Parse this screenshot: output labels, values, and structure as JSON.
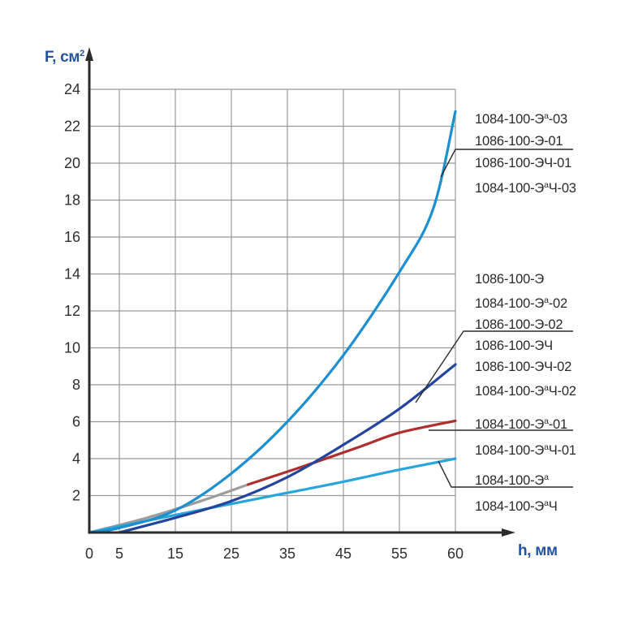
{
  "axes": {
    "y_title": {
      "base": "F, см",
      "sup": "2"
    },
    "x_title": "h, мм",
    "x_tick_labels": [
      "0",
      "5",
      "15",
      "25",
      "35",
      "45",
      "55",
      "60"
    ],
    "y_tick_labels": [
      "2",
      "4",
      "6",
      "8",
      "10",
      "12",
      "14",
      "16",
      "18",
      "20",
      "22",
      "24"
    ]
  },
  "chart_data": {
    "type": "line",
    "title": "",
    "xlabel": "h, мм",
    "ylabel": "F, см2",
    "xlim": [
      0,
      60
    ],
    "ylim": [
      0,
      24
    ],
    "x_ticks": [
      0,
      5,
      15,
      25,
      35,
      45,
      55,
      60
    ],
    "y_ticks": [
      2,
      4,
      6,
      8,
      10,
      12,
      14,
      16,
      18,
      20,
      22,
      24
    ],
    "grid": true,
    "legend_position": "right-annotations",
    "series": [
      {
        "name": "common-initial-segment",
        "models": [],
        "color": "#9c9c9c",
        "points": [
          [
            0,
            0
          ],
          [
            10,
            0.8
          ],
          [
            20,
            1.75
          ],
          [
            28,
            2.6
          ]
        ]
      },
      {
        "name": "1084-100-Эа / 1084-100-ЭаЧ",
        "models": [
          "1084-100-Эа",
          "1084-100-ЭаЧ"
        ],
        "color": "#29a5de",
        "points": [
          [
            0,
            0
          ],
          [
            15,
            0.95
          ],
          [
            25,
            1.55
          ],
          [
            35,
            2.15
          ],
          [
            45,
            2.75
          ],
          [
            55,
            3.4
          ],
          [
            60,
            4.0
          ]
        ]
      },
      {
        "name": "1084-100-Эа-01 / 1084-100-ЭаЧ-01",
        "models": [
          "1084-100-Эа-01",
          "1084-100-ЭаЧ-01"
        ],
        "color": "#ae2f2f",
        "points": [
          [
            28,
            2.6
          ],
          [
            38,
            3.6
          ],
          [
            48,
            4.65
          ],
          [
            55,
            5.4
          ],
          [
            60,
            6.05
          ]
        ]
      },
      {
        "name": "1086-100-Э / 1084-100-Эа-02 / 1086-100-Э-02 / 1086-100-ЭЧ / 1086-100-ЭЧ-02 / 1084-100-ЭаЧ-02",
        "models": [
          "1086-100-Э",
          "1084-100-Эа-02",
          "1086-100-Э-02",
          "1086-100-ЭЧ",
          "1086-100-ЭЧ-02",
          "1084-100-ЭаЧ-02"
        ],
        "color": "#24459b",
        "points": [
          [
            5,
            0
          ],
          [
            15,
            0.8
          ],
          [
            25,
            1.7
          ],
          [
            35,
            3.0
          ],
          [
            45,
            4.75
          ],
          [
            55,
            6.7
          ],
          [
            60,
            9.1
          ]
        ]
      },
      {
        "name": "1084-100-Эа-03 / 1086-100-Э-01 / 1086-100-ЭЧ-01 / 1084-100-ЭаЧ-03",
        "models": [
          "1084-100-Эа-03",
          "1086-100-Э-01",
          "1086-100-ЭЧ-01",
          "1084-100-ЭаЧ-03"
        ],
        "color": "#1b8fd0",
        "points": [
          [
            0,
            0
          ],
          [
            5,
            0.25
          ],
          [
            15,
            1.2
          ],
          [
            25,
            3.2
          ],
          [
            35,
            6.0
          ],
          [
            45,
            9.6
          ],
          [
            55,
            14.1
          ],
          [
            58,
            17.5
          ],
          [
            60,
            22.8
          ]
        ]
      }
    ]
  },
  "labels": {
    "groups": [
      {
        "items": [
          {
            "base": "1084-100-Э",
            "sup": "а",
            "rest": "-03"
          },
          {
            "base": "1086-100-Э-01",
            "sup": "",
            "rest": ""
          },
          {
            "base": "1086-100-ЭЧ-01",
            "sup": "",
            "rest": ""
          },
          {
            "base": "1084-100-Э",
            "sup": "а",
            "rest": "Ч-03"
          }
        ]
      },
      {
        "items": [
          {
            "base": "1086-100-Э",
            "sup": "",
            "rest": ""
          },
          {
            "base": "1084-100-Э",
            "sup": "а",
            "rest": "-02"
          },
          {
            "base": "1086-100-Э-02",
            "sup": "",
            "rest": ""
          },
          {
            "base": "1086-100-ЭЧ",
            "sup": "",
            "rest": ""
          },
          {
            "base": "1086-100-ЭЧ-02",
            "sup": "",
            "rest": ""
          },
          {
            "base": "1084-100-Э",
            "sup": "а",
            "rest": "Ч-02"
          }
        ]
      },
      {
        "items": [
          {
            "base": "1084-100-Э",
            "sup": "а",
            "rest": "-01"
          },
          {
            "base": "1084-100-Э",
            "sup": "а",
            "rest": "Ч-01"
          }
        ]
      },
      {
        "items": [
          {
            "base": "1084-100-Э",
            "sup": "а",
            "rest": ""
          },
          {
            "base": "1084-100-Э",
            "sup": "а",
            "rest": "Ч"
          }
        ]
      }
    ]
  },
  "colors": {
    "axis_title": "#2053a4",
    "tick_text": "#2f2f2f",
    "grid": "#999999",
    "axis": "#2b2b2b",
    "leader": "#2b2b2b",
    "label_text": "#2a2a2a"
  }
}
